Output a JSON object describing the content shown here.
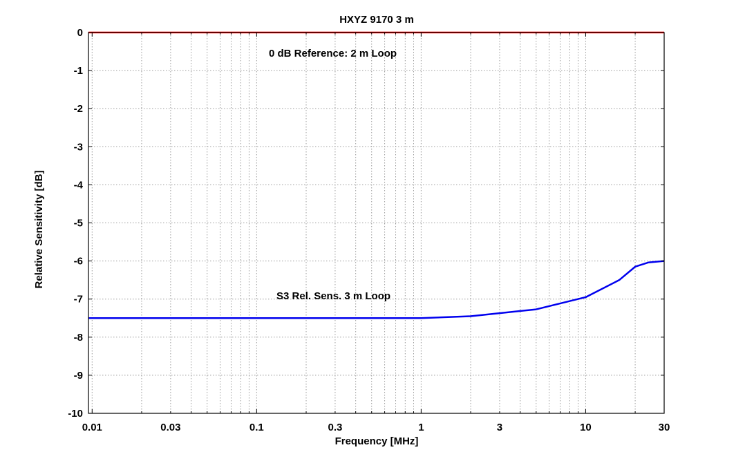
{
  "chart_data": {
    "type": "line",
    "title": "HXYZ 9170 3 m",
    "xlabel": "Frequency [MHz]",
    "ylabel": "Relative Sensitivity [dB]",
    "xscale": "log",
    "xlim": [
      0.0095,
      30
    ],
    "ylim": [
      -10,
      0
    ],
    "grid": true,
    "x_ticks": [
      0.01,
      0.03,
      0.1,
      0.3,
      1,
      3,
      10,
      30
    ],
    "x_tick_labels": [
      "0.01",
      "0.03",
      "0.1",
      "0.3",
      "1",
      "3",
      "10",
      "30"
    ],
    "y_ticks": [
      0,
      -1,
      -2,
      -3,
      -4,
      -5,
      -6,
      -7,
      -8,
      -9,
      -10
    ],
    "y_tick_labels": [
      "0",
      "-1",
      "-2",
      "-3",
      "-4",
      "-5",
      "-6",
      "-7",
      "-8",
      "-9",
      "-10"
    ],
    "series": [
      {
        "name": "0 dB Reference: 2 m Loop",
        "color": "#ff0000",
        "x": [
          0.0095,
          30
        ],
        "y": [
          0,
          0
        ]
      },
      {
        "name": "S3 Rel. Sens. 3 m Loop",
        "color": "#0000ee",
        "x": [
          0.0095,
          1,
          2,
          5,
          10,
          16,
          20,
          24,
          30
        ],
        "y": [
          -7.5,
          -7.5,
          -7.45,
          -7.27,
          -6.95,
          -6.5,
          -6.15,
          -6.04,
          -6.0
        ]
      }
    ],
    "annotations": [
      {
        "text": "0 dB Reference: 2 m Loop",
        "series": 0
      },
      {
        "text": "S3 Rel. Sens. 3 m Loop",
        "series": 1
      }
    ]
  }
}
